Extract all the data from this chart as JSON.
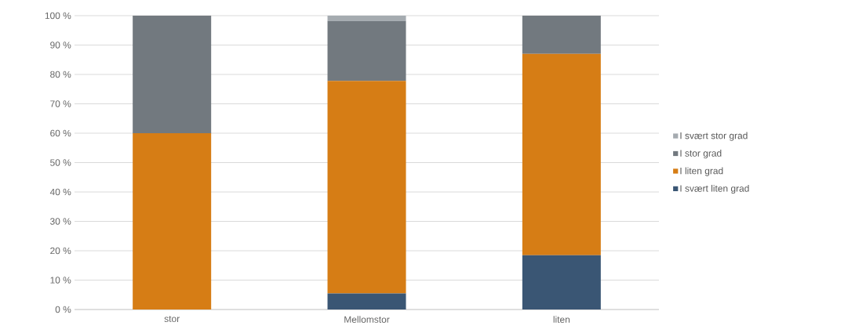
{
  "chart_data": {
    "type": "bar",
    "stacked": true,
    "categories": [
      "stor",
      "Mellomstor",
      "liten"
    ],
    "series": [
      {
        "name": "I svært liten grad",
        "color": "#3a5674",
        "values": [
          0,
          5.5,
          18.5
        ]
      },
      {
        "name": "I liten grad",
        "color": "#d67d15",
        "values": [
          60,
          72.3,
          68.5
        ]
      },
      {
        "name": "I stor grad",
        "color": "#72797f",
        "values": [
          40,
          20.4,
          13
        ]
      },
      {
        "name": "I svært stor grad",
        "color": "#a5abb0",
        "values": [
          0,
          1.8,
          0
        ]
      }
    ],
    "ylim": [
      0,
      100
    ],
    "yticks": [
      {
        "value": 0,
        "label": "0 %"
      },
      {
        "value": 10,
        "label": "10 %"
      },
      {
        "value": 20,
        "label": "20 %"
      },
      {
        "value": 30,
        "label": "30 %"
      },
      {
        "value": 40,
        "label": "40 %"
      },
      {
        "value": 50,
        "label": "50 %"
      },
      {
        "value": 60,
        "label": "60 %"
      },
      {
        "value": 70,
        "label": "70 %"
      },
      {
        "value": 80,
        "label": "80 %"
      },
      {
        "value": 90,
        "label": "90 %"
      },
      {
        "value": 100,
        "label": "100 %"
      }
    ],
    "grid": "y",
    "legend": "right"
  }
}
